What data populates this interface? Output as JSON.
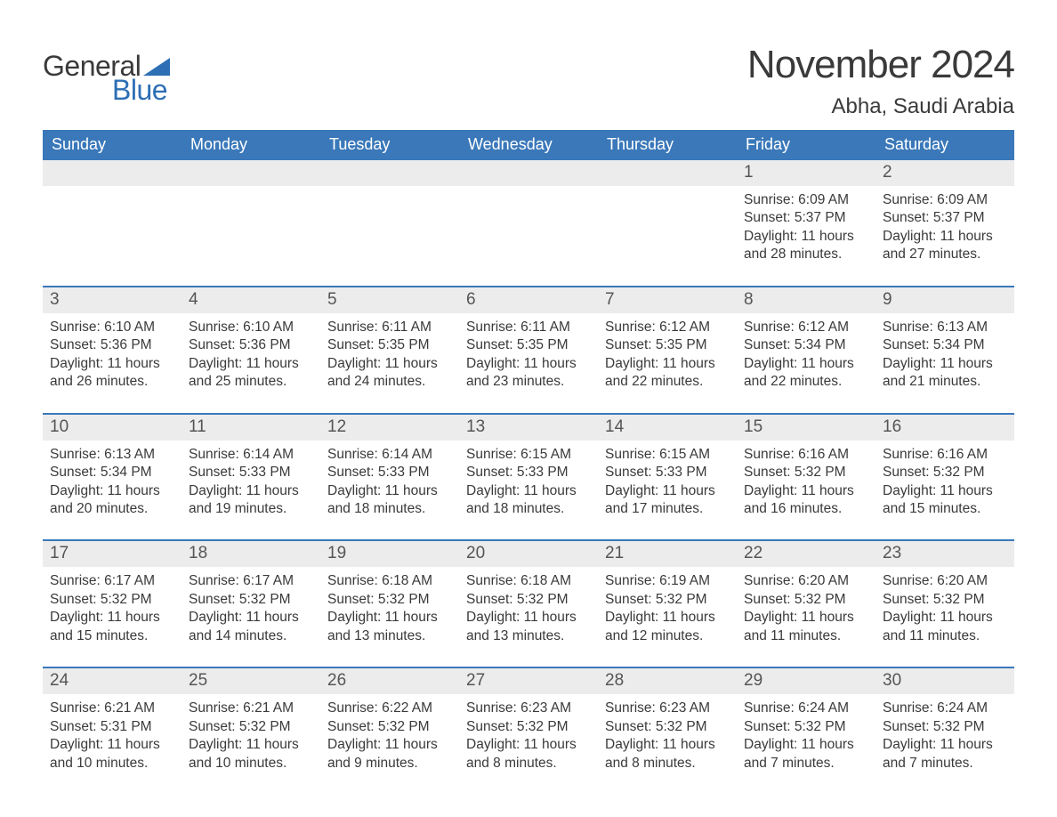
{
  "brand": {
    "general": "General",
    "blue": "Blue"
  },
  "title": "November 2024",
  "location": "Abha, Saudi Arabia",
  "colors": {
    "header_bg": "#3a78b9",
    "header_text": "#ffffff",
    "strip_bg": "#ececec",
    "border": "#3a78b9",
    "body_text": "#3a3a3a",
    "daynum_text": "#555555",
    "brand_blue": "#2d6fb5",
    "background": "#ffffff"
  },
  "typography": {
    "title_fontsize": 44,
    "location_fontsize": 24,
    "weekday_fontsize": 18,
    "daynum_fontsize": 19,
    "body_fontsize": 15.5
  },
  "weekdays": [
    "Sunday",
    "Monday",
    "Tuesday",
    "Wednesday",
    "Thursday",
    "Friday",
    "Saturday"
  ],
  "weeks": [
    [
      null,
      null,
      null,
      null,
      null,
      {
        "n": "1",
        "sr": "Sunrise: 6:09 AM",
        "ss": "Sunset: 5:37 PM",
        "d1": "Daylight: 11 hours",
        "d2": "and 28 minutes."
      },
      {
        "n": "2",
        "sr": "Sunrise: 6:09 AM",
        "ss": "Sunset: 5:37 PM",
        "d1": "Daylight: 11 hours",
        "d2": "and 27 minutes."
      }
    ],
    [
      {
        "n": "3",
        "sr": "Sunrise: 6:10 AM",
        "ss": "Sunset: 5:36 PM",
        "d1": "Daylight: 11 hours",
        "d2": "and 26 minutes."
      },
      {
        "n": "4",
        "sr": "Sunrise: 6:10 AM",
        "ss": "Sunset: 5:36 PM",
        "d1": "Daylight: 11 hours",
        "d2": "and 25 minutes."
      },
      {
        "n": "5",
        "sr": "Sunrise: 6:11 AM",
        "ss": "Sunset: 5:35 PM",
        "d1": "Daylight: 11 hours",
        "d2": "and 24 minutes."
      },
      {
        "n": "6",
        "sr": "Sunrise: 6:11 AM",
        "ss": "Sunset: 5:35 PM",
        "d1": "Daylight: 11 hours",
        "d2": "and 23 minutes."
      },
      {
        "n": "7",
        "sr": "Sunrise: 6:12 AM",
        "ss": "Sunset: 5:35 PM",
        "d1": "Daylight: 11 hours",
        "d2": "and 22 minutes."
      },
      {
        "n": "8",
        "sr": "Sunrise: 6:12 AM",
        "ss": "Sunset: 5:34 PM",
        "d1": "Daylight: 11 hours",
        "d2": "and 22 minutes."
      },
      {
        "n": "9",
        "sr": "Sunrise: 6:13 AM",
        "ss": "Sunset: 5:34 PM",
        "d1": "Daylight: 11 hours",
        "d2": "and 21 minutes."
      }
    ],
    [
      {
        "n": "10",
        "sr": "Sunrise: 6:13 AM",
        "ss": "Sunset: 5:34 PM",
        "d1": "Daylight: 11 hours",
        "d2": "and 20 minutes."
      },
      {
        "n": "11",
        "sr": "Sunrise: 6:14 AM",
        "ss": "Sunset: 5:33 PM",
        "d1": "Daylight: 11 hours",
        "d2": "and 19 minutes."
      },
      {
        "n": "12",
        "sr": "Sunrise: 6:14 AM",
        "ss": "Sunset: 5:33 PM",
        "d1": "Daylight: 11 hours",
        "d2": "and 18 minutes."
      },
      {
        "n": "13",
        "sr": "Sunrise: 6:15 AM",
        "ss": "Sunset: 5:33 PM",
        "d1": "Daylight: 11 hours",
        "d2": "and 18 minutes."
      },
      {
        "n": "14",
        "sr": "Sunrise: 6:15 AM",
        "ss": "Sunset: 5:33 PM",
        "d1": "Daylight: 11 hours",
        "d2": "and 17 minutes."
      },
      {
        "n": "15",
        "sr": "Sunrise: 6:16 AM",
        "ss": "Sunset: 5:32 PM",
        "d1": "Daylight: 11 hours",
        "d2": "and 16 minutes."
      },
      {
        "n": "16",
        "sr": "Sunrise: 6:16 AM",
        "ss": "Sunset: 5:32 PM",
        "d1": "Daylight: 11 hours",
        "d2": "and 15 minutes."
      }
    ],
    [
      {
        "n": "17",
        "sr": "Sunrise: 6:17 AM",
        "ss": "Sunset: 5:32 PM",
        "d1": "Daylight: 11 hours",
        "d2": "and 15 minutes."
      },
      {
        "n": "18",
        "sr": "Sunrise: 6:17 AM",
        "ss": "Sunset: 5:32 PM",
        "d1": "Daylight: 11 hours",
        "d2": "and 14 minutes."
      },
      {
        "n": "19",
        "sr": "Sunrise: 6:18 AM",
        "ss": "Sunset: 5:32 PM",
        "d1": "Daylight: 11 hours",
        "d2": "and 13 minutes."
      },
      {
        "n": "20",
        "sr": "Sunrise: 6:18 AM",
        "ss": "Sunset: 5:32 PM",
        "d1": "Daylight: 11 hours",
        "d2": "and 13 minutes."
      },
      {
        "n": "21",
        "sr": "Sunrise: 6:19 AM",
        "ss": "Sunset: 5:32 PM",
        "d1": "Daylight: 11 hours",
        "d2": "and 12 minutes."
      },
      {
        "n": "22",
        "sr": "Sunrise: 6:20 AM",
        "ss": "Sunset: 5:32 PM",
        "d1": "Daylight: 11 hours",
        "d2": "and 11 minutes."
      },
      {
        "n": "23",
        "sr": "Sunrise: 6:20 AM",
        "ss": "Sunset: 5:32 PM",
        "d1": "Daylight: 11 hours",
        "d2": "and 11 minutes."
      }
    ],
    [
      {
        "n": "24",
        "sr": "Sunrise: 6:21 AM",
        "ss": "Sunset: 5:31 PM",
        "d1": "Daylight: 11 hours",
        "d2": "and 10 minutes."
      },
      {
        "n": "25",
        "sr": "Sunrise: 6:21 AM",
        "ss": "Sunset: 5:32 PM",
        "d1": "Daylight: 11 hours",
        "d2": "and 10 minutes."
      },
      {
        "n": "26",
        "sr": "Sunrise: 6:22 AM",
        "ss": "Sunset: 5:32 PM",
        "d1": "Daylight: 11 hours",
        "d2": "and 9 minutes."
      },
      {
        "n": "27",
        "sr": "Sunrise: 6:23 AM",
        "ss": "Sunset: 5:32 PM",
        "d1": "Daylight: 11 hours",
        "d2": "and 8 minutes."
      },
      {
        "n": "28",
        "sr": "Sunrise: 6:23 AM",
        "ss": "Sunset: 5:32 PM",
        "d1": "Daylight: 11 hours",
        "d2": "and 8 minutes."
      },
      {
        "n": "29",
        "sr": "Sunrise: 6:24 AM",
        "ss": "Sunset: 5:32 PM",
        "d1": "Daylight: 11 hours",
        "d2": "and 7 minutes."
      },
      {
        "n": "30",
        "sr": "Sunrise: 6:24 AM",
        "ss": "Sunset: 5:32 PM",
        "d1": "Daylight: 11 hours",
        "d2": "and 7 minutes."
      }
    ]
  ]
}
